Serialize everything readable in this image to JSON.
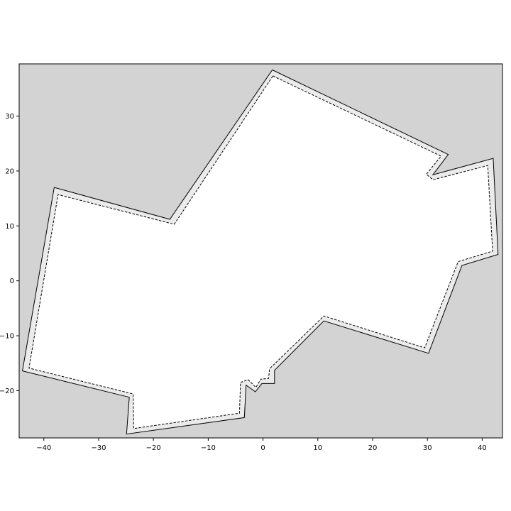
{
  "chart_data": {
    "type": "polygon",
    "title": "",
    "xlabel": "",
    "ylabel": "",
    "xlim": [
      -44.5,
      43.7
    ],
    "ylim": [
      -28.6,
      39.5
    ],
    "grid": false,
    "background_color": "#d3d3d3",
    "interior_color": "#ffffff",
    "band_color": "#ebebeb",
    "edge_color": "#000000",
    "xticks": [
      -40,
      -30,
      -20,
      -10,
      0,
      10,
      20,
      30,
      40
    ],
    "xtick_labels": [
      "−40",
      "−30",
      "−20",
      "−10",
      "0",
      "10",
      "20",
      "30",
      "40"
    ],
    "yticks": [
      -20,
      -10,
      0,
      10,
      20,
      30
    ],
    "ytick_labels": [
      "−20",
      "−10",
      "0",
      "10",
      "20",
      "30"
    ],
    "series": [
      {
        "style": "solid",
        "points": [
          [
            1.7,
            38.4
          ],
          [
            33.8,
            23.0
          ],
          [
            31.0,
            19.3
          ],
          [
            42.0,
            22.3
          ],
          [
            42.9,
            4.8
          ],
          [
            36.3,
            2.8
          ],
          [
            30.2,
            -13.2
          ],
          [
            11.1,
            -7.3
          ],
          [
            2.1,
            -16.3
          ],
          [
            2.1,
            -18.7
          ],
          [
            -0.2,
            -18.7
          ],
          [
            -1.4,
            -20.2
          ],
          [
            -3.1,
            -19.0
          ],
          [
            -3.4,
            -24.9
          ],
          [
            -24.9,
            -27.9
          ],
          [
            -24.4,
            -21.2
          ],
          [
            -43.9,
            -16.4
          ],
          [
            -38.1,
            17.0
          ],
          [
            -17.0,
            11.2
          ],
          [
            1.7,
            38.4
          ]
        ]
      },
      {
        "style": "dashed",
        "points": [
          [
            1.8,
            37.3
          ],
          [
            32.5,
            22.7
          ],
          [
            29.8,
            19.4
          ],
          [
            31.0,
            18.4
          ],
          [
            41.0,
            21.0
          ],
          [
            41.9,
            5.4
          ],
          [
            35.6,
            3.5
          ],
          [
            29.5,
            -12.2
          ],
          [
            11.1,
            -6.4
          ],
          [
            1.2,
            -16.0
          ],
          [
            1.0,
            -17.8
          ],
          [
            -0.4,
            -17.9
          ],
          [
            -1.3,
            -19.4
          ],
          [
            -2.7,
            -18.0
          ],
          [
            -4.1,
            -18.5
          ],
          [
            -4.3,
            -24.1
          ],
          [
            -23.6,
            -26.9
          ],
          [
            -23.7,
            -20.6
          ],
          [
            -42.7,
            -15.9
          ],
          [
            -37.4,
            15.7
          ],
          [
            -16.2,
            10.3
          ],
          [
            1.8,
            37.3
          ]
        ]
      }
    ]
  }
}
